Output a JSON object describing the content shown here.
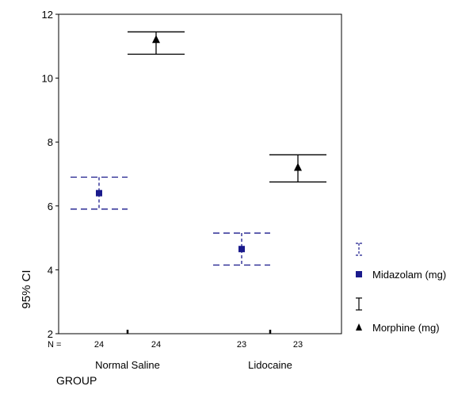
{
  "chart_data": {
    "type": "errorbar",
    "ylabel": "95% CI",
    "xlabel": "GROUP",
    "ylim": [
      2,
      12
    ],
    "yticks": [
      2,
      4,
      6,
      8,
      10,
      12
    ],
    "n_label": "N =",
    "groups": [
      {
        "name": "Normal Saline",
        "n": [
          24,
          24
        ]
      },
      {
        "name": "Lidocaine",
        "n": [
          23,
          23
        ]
      }
    ],
    "series": [
      {
        "name": "Midazolam (mg)",
        "color": "#1a1a8c",
        "line_style": "dashed",
        "marker": "square",
        "points": [
          {
            "group": "Normal Saline",
            "mean": 6.4,
            "lower": 5.9,
            "upper": 6.9
          },
          {
            "group": "Lidocaine",
            "mean": 4.65,
            "lower": 4.15,
            "upper": 5.15
          }
        ]
      },
      {
        "name": "Morphine (mg)",
        "color": "#000000",
        "line_style": "solid",
        "marker": "triangle",
        "points": [
          {
            "group": "Normal Saline",
            "mean": 11.2,
            "lower": 10.75,
            "upper": 11.45
          },
          {
            "group": "Lidocaine",
            "mean": 7.2,
            "lower": 6.75,
            "upper": 7.6
          }
        ]
      }
    ],
    "legend": "right",
    "grid": false
  }
}
